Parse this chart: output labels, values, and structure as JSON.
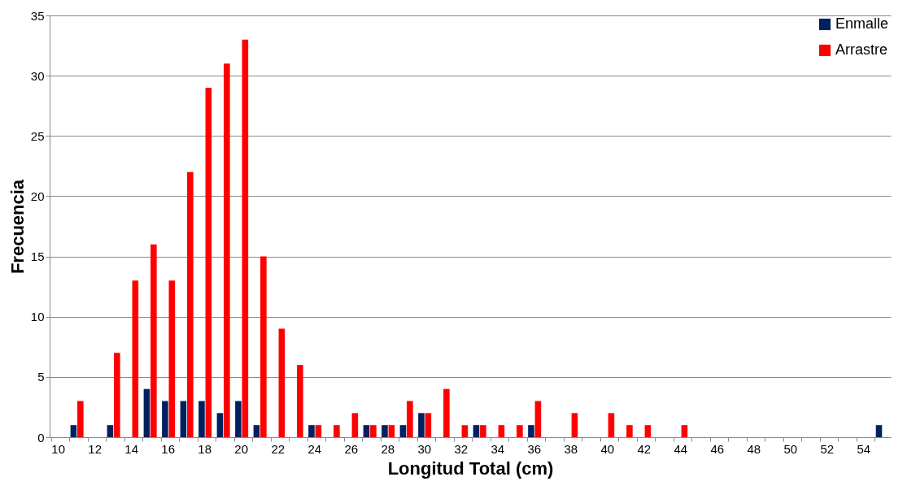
{
  "chart_data": {
    "type": "bar",
    "xlabel": "Longitud Total (cm)",
    "ylabel": "Frecuencia",
    "categories": [
      "10",
      null,
      "12",
      null,
      "14",
      null,
      "16",
      null,
      "18",
      null,
      "20",
      null,
      "22",
      null,
      "24",
      null,
      "26",
      null,
      "28",
      null,
      "30",
      null,
      "32",
      null,
      "34",
      null,
      "36",
      null,
      "38",
      null,
      "40",
      null,
      "42",
      null,
      "44",
      null,
      "46",
      null,
      "48",
      null,
      "50",
      null,
      "52",
      null,
      "54",
      null
    ],
    "series": [
      {
        "name": "Enmalle",
        "color": "#002060",
        "values": [
          0,
          1,
          0,
          1,
          0,
          4,
          3,
          3,
          3,
          2,
          3,
          1,
          0,
          0,
          1,
          0,
          0,
          1,
          1,
          1,
          2,
          0,
          0,
          1,
          0,
          0,
          1,
          0,
          0,
          0,
          0,
          0,
          0,
          0,
          0,
          0,
          0,
          0,
          0,
          0,
          0,
          0,
          0,
          0,
          0,
          1
        ]
      },
      {
        "name": "Arrastre",
        "color": "#ff0000",
        "values": [
          0,
          3,
          0,
          7,
          13,
          16,
          13,
          22,
          29,
          31,
          33,
          15,
          9,
          6,
          1,
          1,
          2,
          1,
          1,
          3,
          2,
          4,
          1,
          1,
          1,
          1,
          3,
          0,
          2,
          0,
          2,
          1,
          1,
          0,
          1,
          0,
          0,
          0,
          0,
          0,
          0,
          0,
          0,
          0,
          0,
          0
        ]
      }
    ],
    "ylim": [
      0,
      35
    ],
    "yticks": [
      0,
      5,
      10,
      15,
      20,
      25,
      30,
      35
    ],
    "grid": "y",
    "legend": "top right"
  }
}
